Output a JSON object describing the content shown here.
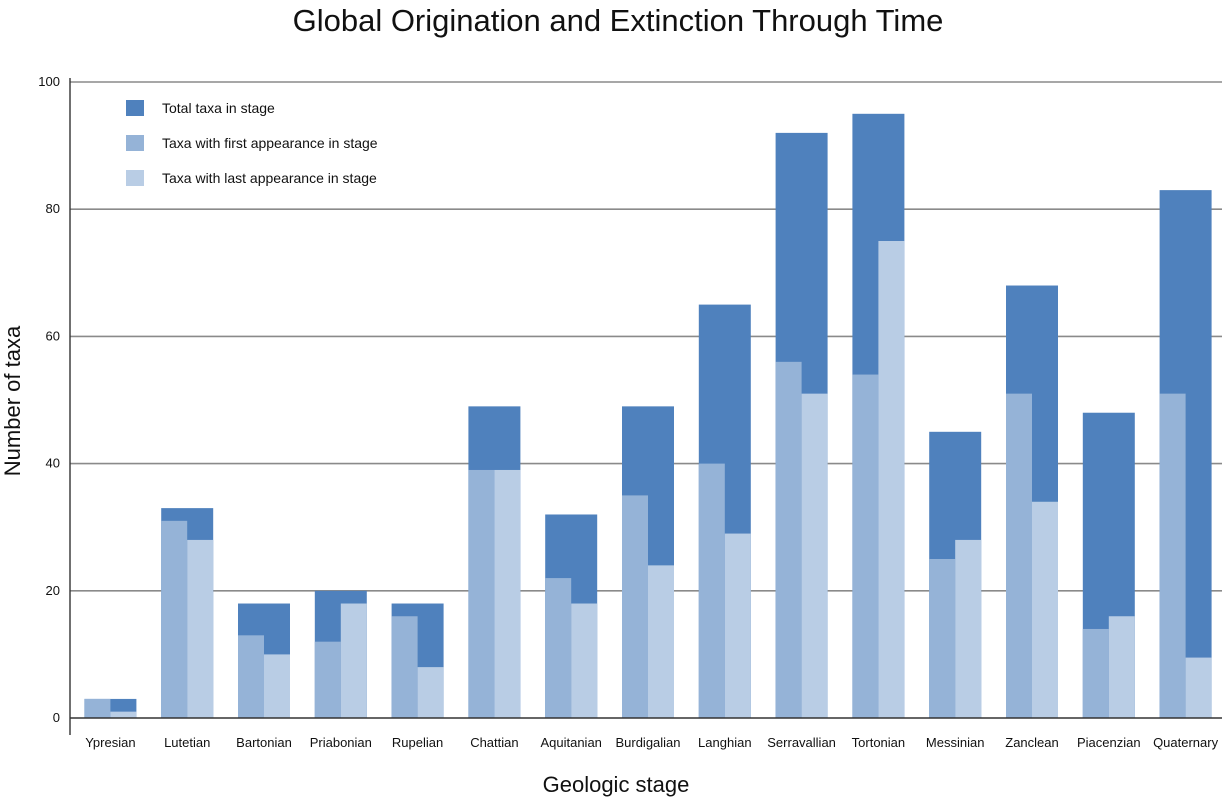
{
  "chart_data": {
    "type": "bar",
    "title": "Global Origination and Extinction Through Time",
    "xlabel": "Geologic stage",
    "ylabel": "Number of taxa",
    "ylim": [
      0,
      100
    ],
    "yticks": [
      0,
      20,
      40,
      60,
      80,
      100
    ],
    "grid": true,
    "legend_placement": "top-left",
    "colors": {
      "total": "#4f81bd",
      "first": "#95b3d7",
      "last": "#b9cde5",
      "grid": "#8a8a8a",
      "axis": "#333333"
    },
    "categories": [
      "Ypresian",
      "Lutetian",
      "Bartonian",
      "Priabonian",
      "Rupelian",
      "Chattian",
      "Aquitanian",
      "Burdigalian",
      "Langhian",
      "Serravallian",
      "Tortonian",
      "Messinian",
      "Zanclean",
      "Piacenzian",
      "Quaternary"
    ],
    "series": [
      {
        "name": "Total taxa in stage",
        "values": [
          3,
          33,
          18,
          20,
          18,
          49,
          32,
          49,
          65,
          92,
          95,
          45,
          68,
          48,
          83
        ]
      },
      {
        "name": "Taxa with first appearance in stage",
        "values": [
          3,
          31,
          13,
          12,
          16,
          39,
          22,
          35,
          40,
          56,
          54,
          25,
          51,
          14,
          51
        ]
      },
      {
        "name": "Taxa with last appearance in stage",
        "values": [
          1,
          28,
          10,
          18,
          8,
          39,
          18,
          24,
          29,
          51,
          75,
          28,
          34,
          16,
          9.5
        ]
      }
    ]
  }
}
